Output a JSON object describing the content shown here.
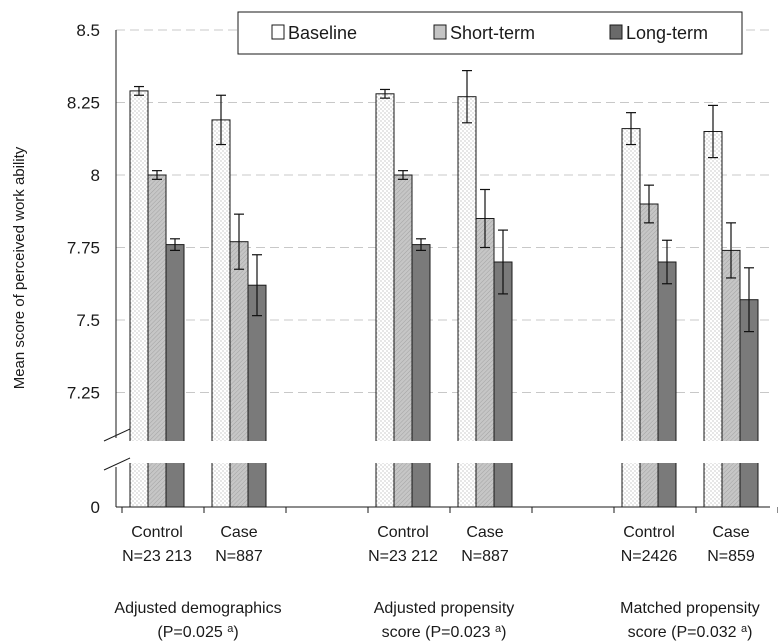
{
  "chart_data": {
    "type": "bar",
    "ylabel": "Mean score of perceived work ability",
    "xlabel": "",
    "ylim": [
      7.1,
      8.5
    ],
    "axis_break": true,
    "y_break_bottom_tick": "0",
    "y_ticks": [
      "8.5",
      "8.25",
      "8",
      "7.75",
      "7.5",
      "7.25"
    ],
    "y_tick_values": [
      8.5,
      8.25,
      8.0,
      7.75,
      7.5,
      7.25
    ],
    "grid": true,
    "legend_position": "top-right",
    "series_names": [
      "Baseline",
      "Short-term",
      "Long-term"
    ],
    "groups": [
      {
        "label_line1": "Adjusted demographics",
        "label_line2": "(P=0.025",
        "label_sup": "a",
        "label_close": ")",
        "categories": [
          {
            "name": "Control",
            "n": "N=23 213",
            "values": [
              8.29,
              8.0,
              7.76
            ],
            "errors": [
              0.015,
              0.015,
              0.02
            ]
          },
          {
            "name": "Case",
            "n": "N=887",
            "values": [
              8.19,
              7.77,
              7.62
            ],
            "errors": [
              0.085,
              0.095,
              0.105
            ]
          }
        ]
      },
      {
        "label_line1": "Adjusted propensity",
        "label_line2": "score (P=0.023",
        "label_sup": "a",
        "label_close": ")",
        "categories": [
          {
            "name": "Control",
            "n": "N=23 212",
            "values": [
              8.28,
              8.0,
              7.76
            ],
            "errors": [
              0.015,
              0.015,
              0.02
            ]
          },
          {
            "name": "Case",
            "n": "N=887",
            "values": [
              8.27,
              7.85,
              7.7
            ],
            "errors": [
              0.09,
              0.1,
              0.11
            ]
          }
        ]
      },
      {
        "label_line1": "Matched propensity",
        "label_line2": "score (P=0.032",
        "label_sup": "a",
        "label_close": ")",
        "categories": [
          {
            "name": "Control",
            "n": "N=2426",
            "values": [
              8.16,
              7.9,
              7.7
            ],
            "errors": [
              0.055,
              0.065,
              0.075
            ]
          },
          {
            "name": "Case",
            "n": "N=859",
            "values": [
              8.15,
              7.74,
              7.57
            ],
            "errors": [
              0.09,
              0.095,
              0.11
            ]
          }
        ]
      }
    ]
  },
  "colors": {
    "baseline": "#ffffff",
    "short_term": "#c4c4c4",
    "long_term": "#7a7a7a",
    "outline": "#1a1a1a",
    "grid": "#c8c8c8"
  }
}
